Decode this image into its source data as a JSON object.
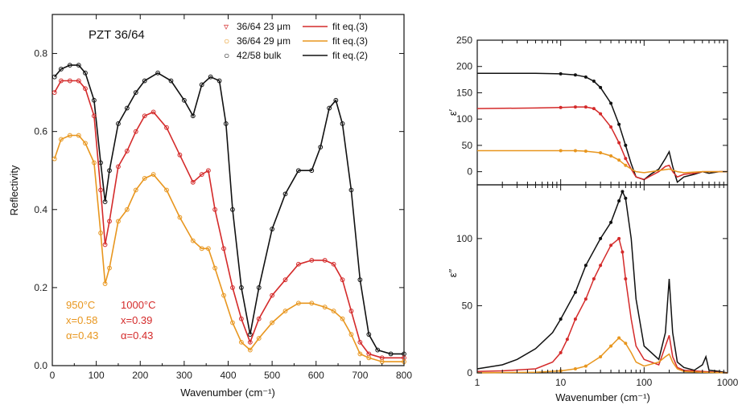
{
  "chart_data": [
    {
      "type": "line",
      "ylabel": "Reflectivity",
      "xlabel": "Wavenumber (cm⁻¹)",
      "xlim": [
        0,
        800
      ],
      "ylim": [
        0.0,
        0.9
      ],
      "xticks": [
        0,
        100,
        200,
        300,
        400,
        500,
        600,
        700,
        800
      ],
      "yticks": [
        0.0,
        0.2,
        0.4,
        0.6,
        0.8
      ],
      "yticklabels": [
        "0.0",
        "0.2",
        "0.4",
        "0.6",
        "0.8"
      ],
      "title_text": "PZT 36/64",
      "legend": {
        "placement": "top-right",
        "entries": [
          {
            "marker": "▿",
            "label": "36/64 23 μm",
            "fit": "fit eq.(3)",
            "color": "#d42a2a"
          },
          {
            "marker": "○",
            "label": "36/64 29 μm",
            "fit": "fit eq.(3)",
            "color": "#e8961e"
          },
          {
            "marker": "○",
            "label": "42/58 bulk",
            "fit": "fit eq.(2)",
            "color": "#111111"
          }
        ]
      },
      "annotations": [
        {
          "text": "950°C",
          "color": "#e8961e"
        },
        {
          "text": "1000°C",
          "color": "#d42a2a"
        },
        {
          "text": "x=0.58",
          "color": "#e8961e"
        },
        {
          "text": "x=0.39",
          "color": "#d42a2a"
        },
        {
          "text": "α=0.43",
          "color": "#e8961e"
        },
        {
          "text": "α=0.43",
          "color": "#d42a2a"
        }
      ],
      "series": [
        {
          "color": "#111111",
          "x": [
            5,
            20,
            40,
            60,
            75,
            95,
            110,
            120,
            130,
            150,
            170,
            190,
            210,
            240,
            270,
            300,
            320,
            340,
            360,
            380,
            395,
            410,
            430,
            450,
            470,
            500,
            530,
            560,
            590,
            610,
            630,
            645,
            660,
            680,
            700,
            720,
            740,
            770,
            800
          ],
          "y": [
            0.74,
            0.76,
            0.77,
            0.77,
            0.75,
            0.68,
            0.52,
            0.42,
            0.5,
            0.62,
            0.66,
            0.7,
            0.73,
            0.75,
            0.73,
            0.68,
            0.64,
            0.72,
            0.74,
            0.73,
            0.62,
            0.4,
            0.2,
            0.08,
            0.2,
            0.35,
            0.44,
            0.5,
            0.5,
            0.56,
            0.66,
            0.68,
            0.62,
            0.45,
            0.22,
            0.08,
            0.04,
            0.03,
            0.03
          ]
        },
        {
          "color": "#d42a2a",
          "x": [
            5,
            20,
            40,
            60,
            75,
            95,
            110,
            120,
            130,
            150,
            170,
            190,
            210,
            230,
            260,
            290,
            320,
            340,
            355,
            370,
            390,
            410,
            430,
            450,
            470,
            500,
            530,
            560,
            590,
            620,
            640,
            660,
            680,
            700,
            720,
            750,
            800
          ],
          "y": [
            0.7,
            0.73,
            0.73,
            0.73,
            0.71,
            0.64,
            0.45,
            0.31,
            0.37,
            0.51,
            0.55,
            0.6,
            0.64,
            0.65,
            0.61,
            0.54,
            0.47,
            0.49,
            0.5,
            0.4,
            0.3,
            0.2,
            0.12,
            0.06,
            0.12,
            0.18,
            0.22,
            0.26,
            0.27,
            0.27,
            0.26,
            0.22,
            0.14,
            0.06,
            0.03,
            0.02,
            0.02
          ]
        },
        {
          "color": "#e8961e",
          "x": [
            5,
            20,
            40,
            60,
            75,
            95,
            110,
            120,
            130,
            150,
            170,
            190,
            210,
            230,
            260,
            290,
            320,
            340,
            355,
            370,
            390,
            410,
            430,
            450,
            470,
            500,
            530,
            560,
            590,
            620,
            640,
            660,
            680,
            700,
            720,
            750,
            800
          ],
          "y": [
            0.53,
            0.58,
            0.59,
            0.59,
            0.57,
            0.52,
            0.34,
            0.21,
            0.25,
            0.37,
            0.4,
            0.45,
            0.48,
            0.49,
            0.45,
            0.38,
            0.32,
            0.3,
            0.3,
            0.25,
            0.18,
            0.11,
            0.06,
            0.04,
            0.07,
            0.11,
            0.14,
            0.16,
            0.16,
            0.15,
            0.14,
            0.12,
            0.08,
            0.03,
            0.02,
            0.01,
            0.01
          ]
        }
      ]
    },
    {
      "type": "line",
      "ylabel": "ε′",
      "xlim": [
        1,
        1000
      ],
      "xscale": "log",
      "ylim": [
        -25,
        250
      ],
      "yticks": [
        0,
        50,
        100,
        150,
        200,
        250
      ],
      "yticklabels": [
        "0",
        "50",
        "100",
        "150",
        "200",
        "250"
      ],
      "series": [
        {
          "color": "#111111",
          "x": [
            1,
            5,
            10,
            15,
            20,
            25,
            30,
            40,
            50,
            60,
            70,
            80,
            100,
            120,
            150,
            180,
            200,
            220,
            250,
            300,
            400,
            500,
            600,
            800,
            1000
          ],
          "y": [
            187,
            187,
            186,
            184,
            180,
            172,
            160,
            130,
            90,
            50,
            15,
            -10,
            -15,
            -5,
            5,
            25,
            38,
            10,
            -20,
            -10,
            -5,
            0,
            -3,
            0,
            0
          ]
        },
        {
          "color": "#d42a2a",
          "x": [
            1,
            5,
            10,
            15,
            20,
            25,
            30,
            40,
            50,
            60,
            70,
            80,
            100,
            120,
            150,
            180,
            200,
            220,
            250,
            300,
            400,
            500,
            800,
            1000
          ],
          "y": [
            120,
            121,
            122,
            123,
            123,
            120,
            110,
            85,
            55,
            25,
            5,
            -10,
            -15,
            -8,
            0,
            10,
            12,
            0,
            -10,
            -5,
            -3,
            0,
            0,
            0
          ]
        },
        {
          "color": "#e8961e",
          "x": [
            1,
            5,
            10,
            15,
            20,
            30,
            40,
            50,
            60,
            70,
            80,
            100,
            150,
            200,
            250,
            300,
            500,
            1000
          ],
          "y": [
            40,
            40,
            40,
            40,
            39,
            36,
            30,
            22,
            12,
            5,
            0,
            -2,
            2,
            5,
            0,
            -2,
            0,
            0
          ]
        }
      ]
    },
    {
      "type": "line",
      "ylabel": "ε″",
      "xlabel": "Wavenumber (cm⁻¹)",
      "xlim": [
        1,
        1000
      ],
      "xscale": "log",
      "xticks": [
        1,
        10,
        100,
        1000
      ],
      "xticklabels": [
        "1",
        "10",
        "100",
        "1000"
      ],
      "ylim": [
        0,
        140
      ],
      "yticks": [
        0,
        50,
        100
      ],
      "yticklabels": [
        "0",
        "50",
        "100"
      ],
      "series": [
        {
          "color": "#111111",
          "x": [
            1,
            2,
            3,
            5,
            8,
            10,
            15,
            20,
            30,
            40,
            50,
            55,
            60,
            70,
            80,
            100,
            150,
            180,
            200,
            220,
            250,
            300,
            400,
            500,
            550,
            600,
            800,
            1000
          ],
          "y": [
            3,
            6,
            10,
            18,
            30,
            40,
            60,
            80,
            100,
            112,
            128,
            135,
            130,
            100,
            55,
            20,
            10,
            30,
            70,
            30,
            8,
            4,
            2,
            6,
            12,
            2,
            1,
            0
          ]
        },
        {
          "color": "#d42a2a",
          "x": [
            1,
            2,
            5,
            8,
            10,
            12,
            15,
            20,
            25,
            30,
            40,
            50,
            55,
            60,
            70,
            80,
            100,
            150,
            180,
            200,
            220,
            250,
            300,
            500,
            1000
          ],
          "y": [
            1,
            1.5,
            3,
            8,
            15,
            25,
            40,
            55,
            70,
            80,
            95,
            100,
            90,
            70,
            40,
            20,
            10,
            6,
            20,
            28,
            12,
            4,
            2,
            1,
            0
          ]
        },
        {
          "color": "#e8961e",
          "x": [
            1,
            5,
            10,
            15,
            20,
            30,
            40,
            50,
            60,
            70,
            80,
            100,
            150,
            180,
            200,
            220,
            250,
            300,
            500,
            1000
          ],
          "y": [
            0,
            0.5,
            1.5,
            3,
            5,
            12,
            20,
            26,
            22,
            15,
            8,
            5,
            8,
            12,
            14,
            8,
            3,
            1,
            0.5,
            0
          ]
        }
      ]
    }
  ]
}
